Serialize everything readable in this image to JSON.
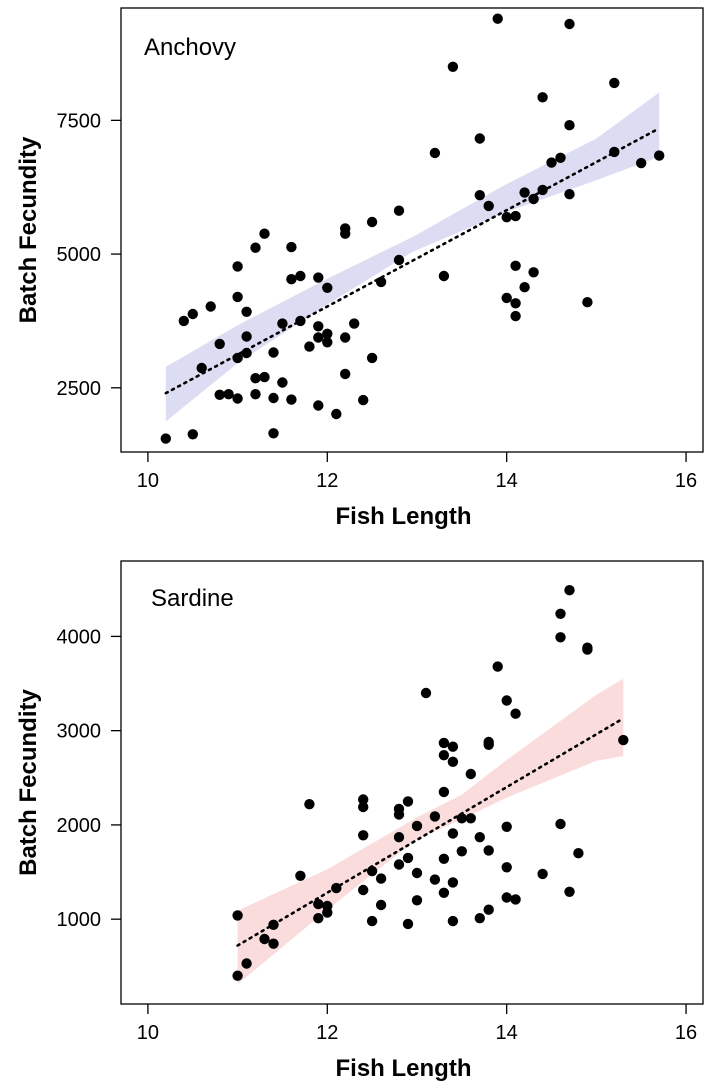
{
  "chart_data": [
    {
      "type": "scatter",
      "panel_label": "Anchovy",
      "xlabel": "Fish Length",
      "ylabel": "Batch Fecundity",
      "xlim": [
        9.7,
        16.2
      ],
      "ylim": [
        1300,
        9600
      ],
      "xticks": [
        10,
        12,
        14,
        16
      ],
      "yticks": [
        2500,
        5000,
        7500
      ],
      "colors": {
        "band": "#dcdcf3",
        "points": "#000000",
        "trend": "#000000"
      },
      "trend": {
        "x": [
          10.2,
          15.7
        ],
        "y": [
          2400,
          7350
        ]
      },
      "band": {
        "x": [
          10.2,
          11.0,
          12.0,
          12.95,
          14.0,
          15.0,
          15.7
        ],
        "lower": [
          1870,
          2960,
          4060,
          5040,
          5790,
          6380,
          6820
        ],
        "upper": [
          2890,
          3670,
          4540,
          5320,
          6310,
          7160,
          8020
        ]
      },
      "points": [
        [
          10.2,
          1550
        ],
        [
          10.4,
          3750
        ],
        [
          10.5,
          3880
        ],
        [
          10.5,
          1630
        ],
        [
          10.6,
          2870
        ],
        [
          10.7,
          4020
        ],
        [
          10.8,
          3320
        ],
        [
          10.8,
          2370
        ],
        [
          10.9,
          2380
        ],
        [
          11.0,
          2300
        ],
        [
          11.0,
          3060
        ],
        [
          11.0,
          4200
        ],
        [
          11.0,
          4770
        ],
        [
          11.1,
          3460
        ],
        [
          11.1,
          3920
        ],
        [
          11.1,
          3150
        ],
        [
          11.2,
          5120
        ],
        [
          11.2,
          2680
        ],
        [
          11.2,
          2380
        ],
        [
          11.3,
          5380
        ],
        [
          11.3,
          2700
        ],
        [
          11.4,
          2310
        ],
        [
          11.4,
          1650
        ],
        [
          11.4,
          3160
        ],
        [
          11.5,
          2600
        ],
        [
          11.5,
          3700
        ],
        [
          11.6,
          5130
        ],
        [
          11.6,
          4530
        ],
        [
          11.6,
          2280
        ],
        [
          11.7,
          4590
        ],
        [
          11.7,
          3750
        ],
        [
          11.8,
          3270
        ],
        [
          11.9,
          2170
        ],
        [
          11.9,
          3440
        ],
        [
          11.9,
          3650
        ],
        [
          11.9,
          4560
        ],
        [
          12.0,
          3350
        ],
        [
          12.0,
          3510
        ],
        [
          12.0,
          4370
        ],
        [
          12.1,
          2010
        ],
        [
          12.2,
          5480
        ],
        [
          12.2,
          5380
        ],
        [
          12.2,
          2760
        ],
        [
          12.2,
          3440
        ],
        [
          12.3,
          3700
        ],
        [
          12.4,
          2270
        ],
        [
          12.5,
          3060
        ],
        [
          12.5,
          5600
        ],
        [
          12.6,
          4480
        ],
        [
          12.8,
          4890
        ],
        [
          12.8,
          5810
        ],
        [
          13.2,
          6890
        ],
        [
          13.3,
          4590
        ],
        [
          13.4,
          8500
        ],
        [
          13.7,
          7160
        ],
        [
          13.7,
          6100
        ],
        [
          13.8,
          5900
        ],
        [
          13.9,
          9400
        ],
        [
          14.0,
          5690
        ],
        [
          14.0,
          4180
        ],
        [
          14.1,
          5710
        ],
        [
          14.1,
          4780
        ],
        [
          14.1,
          4080
        ],
        [
          14.1,
          3840
        ],
        [
          14.2,
          6150
        ],
        [
          14.2,
          4380
        ],
        [
          14.3,
          6030
        ],
        [
          14.3,
          4660
        ],
        [
          14.4,
          7930
        ],
        [
          14.4,
          6200
        ],
        [
          14.5,
          6710
        ],
        [
          14.6,
          6800
        ],
        [
          14.7,
          9300
        ],
        [
          14.7,
          7410
        ],
        [
          14.7,
          6120
        ],
        [
          14.9,
          4100
        ],
        [
          15.2,
          8200
        ],
        [
          15.2,
          6910
        ],
        [
          15.5,
          6700
        ],
        [
          15.7,
          6840
        ]
      ]
    },
    {
      "type": "scatter",
      "panel_label": "Sardine",
      "xlabel": "Fish Length",
      "ylabel": "Batch Fecundity",
      "xlim": [
        9.7,
        16.2
      ],
      "ylim": [
        100,
        4800
      ],
      "xticks": [
        10,
        12,
        14,
        16
      ],
      "yticks": [
        1000,
        2000,
        3000,
        4000
      ],
      "colors": {
        "band": "#fbdcdc",
        "points": "#000000",
        "trend": "#000000"
      },
      "trend": {
        "x": [
          11.0,
          15.3
        ],
        "y": [
          720,
          3130
        ]
      },
      "band": {
        "x": [
          11.0,
          12.0,
          13.0,
          13.5,
          14.0,
          15.0,
          15.3
        ],
        "lower": [
          310,
          1100,
          1850,
          2060,
          2290,
          2680,
          2730
        ],
        "upper": [
          1090,
          1530,
          2080,
          2320,
          2690,
          3380,
          3550
        ]
      },
      "points": [
        [
          11.0,
          1040
        ],
        [
          11.0,
          400
        ],
        [
          11.1,
          530
        ],
        [
          11.3,
          790
        ],
        [
          11.4,
          940
        ],
        [
          11.4,
          740
        ],
        [
          11.7,
          1460
        ],
        [
          11.8,
          2220
        ],
        [
          11.9,
          1160
        ],
        [
          11.9,
          1010
        ],
        [
          12.0,
          1140
        ],
        [
          12.0,
          1070
        ],
        [
          12.1,
          1330
        ],
        [
          12.4,
          2270
        ],
        [
          12.4,
          2190
        ],
        [
          12.4,
          1890
        ],
        [
          12.4,
          1310
        ],
        [
          12.5,
          1510
        ],
        [
          12.5,
          980
        ],
        [
          12.6,
          1150
        ],
        [
          12.6,
          1430
        ],
        [
          12.8,
          2170
        ],
        [
          12.8,
          2110
        ],
        [
          12.8,
          1870
        ],
        [
          12.8,
          1580
        ],
        [
          12.9,
          2250
        ],
        [
          12.9,
          1650
        ],
        [
          12.9,
          950
        ],
        [
          13.0,
          1990
        ],
        [
          13.0,
          1490
        ],
        [
          13.0,
          1200
        ],
        [
          13.1,
          3400
        ],
        [
          13.2,
          2090
        ],
        [
          13.2,
          1420
        ],
        [
          13.3,
          2870
        ],
        [
          13.3,
          2740
        ],
        [
          13.3,
          2350
        ],
        [
          13.3,
          1640
        ],
        [
          13.3,
          1280
        ],
        [
          13.4,
          2830
        ],
        [
          13.4,
          2670
        ],
        [
          13.4,
          1910
        ],
        [
          13.4,
          1390
        ],
        [
          13.4,
          980
        ],
        [
          13.5,
          2070
        ],
        [
          13.5,
          1720
        ],
        [
          13.6,
          2540
        ],
        [
          13.6,
          2070
        ],
        [
          13.7,
          1870
        ],
        [
          13.7,
          1010
        ],
        [
          13.8,
          2880
        ],
        [
          13.8,
          2850
        ],
        [
          13.8,
          1730
        ],
        [
          13.8,
          1100
        ],
        [
          13.9,
          3680
        ],
        [
          14.0,
          3320
        ],
        [
          14.0,
          1980
        ],
        [
          14.0,
          1550
        ],
        [
          14.0,
          1230
        ],
        [
          14.1,
          3180
        ],
        [
          14.1,
          1210
        ],
        [
          14.4,
          1480
        ],
        [
          14.6,
          4240
        ],
        [
          14.6,
          3990
        ],
        [
          14.6,
          2010
        ],
        [
          14.7,
          4490
        ],
        [
          14.7,
          1290
        ],
        [
          14.8,
          1700
        ],
        [
          14.9,
          3880
        ],
        [
          14.9,
          3860
        ],
        [
          15.3,
          2900
        ]
      ]
    }
  ]
}
